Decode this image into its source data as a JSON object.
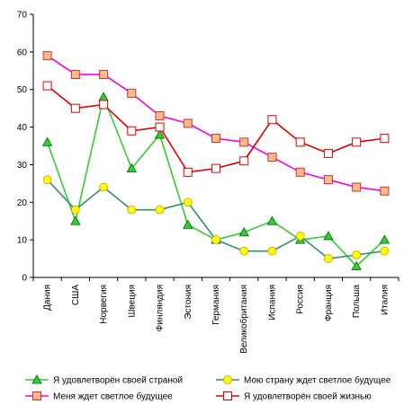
{
  "chart_data": {
    "type": "line",
    "categories": [
      "Дания",
      "США",
      "Норвегия",
      "Швеция",
      "Финляндия",
      "Эстония",
      "Германия",
      "Великобритания",
      "Испания",
      "Россия",
      "Франция",
      "Польша",
      "Италия"
    ],
    "ylim": [
      0,
      70
    ],
    "yticks": [
      0,
      10,
      20,
      30,
      40,
      50,
      60,
      70
    ],
    "grid": false,
    "legend_placement": "bottom",
    "series": [
      {
        "name": "Я удовлетворён своей страной",
        "line_color": "#33cc33",
        "marker": "triangle",
        "marker_fill": "#33cc33",
        "marker_stroke": "#006600",
        "values": [
          36,
          15,
          48,
          29,
          38,
          14,
          10,
          12,
          15,
          10,
          11,
          3,
          10
        ]
      },
      {
        "name": "Мою страну ждет светлое будущее",
        "line_color": "#2f8f6f",
        "marker": "circle",
        "marker_fill": "#ffff00",
        "marker_stroke": "#cc9900",
        "values": [
          26,
          18,
          24,
          18,
          18,
          20,
          10,
          7,
          7,
          11,
          5,
          6,
          7
        ]
      },
      {
        "name": "Меня ждет светлое будущее",
        "line_color": "#ee00ee",
        "marker": "square",
        "marker_fill": "#ffbb88",
        "marker_stroke": "#cc3333",
        "values": [
          59,
          54,
          54,
          49,
          43,
          41,
          37,
          36,
          32,
          28,
          26,
          24,
          23
        ]
      },
      {
        "name": "Я удовлетворён своей жизнью",
        "line_color": "#dd0000",
        "marker": "square",
        "marker_fill": "#ffffff",
        "marker_stroke": "#dd0000",
        "values": [
          51,
          45,
          46,
          39,
          40,
          28,
          29,
          31,
          42,
          36,
          33,
          36,
          37
        ]
      }
    ]
  }
}
